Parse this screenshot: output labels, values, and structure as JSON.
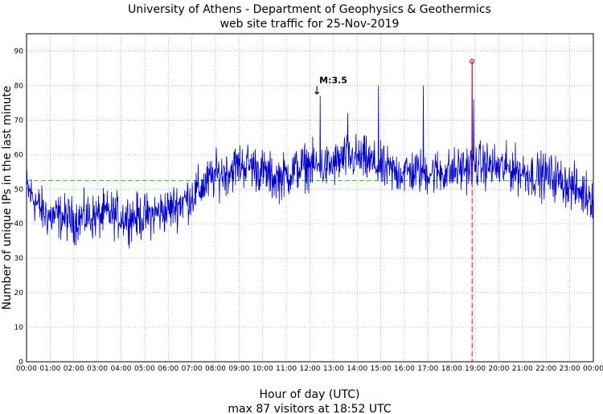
{
  "chart_data": {
    "type": "line",
    "title": "University of Athens - Department of Geophysics & Geothermics",
    "subtitle": "web site traffic for 25-Nov-2019",
    "xlabel": "Hour of day (UTC)",
    "ylabel": "Number of unique IPs in the last minute",
    "footer": "max 87 visitors at 18:52 UTC",
    "xlim": [
      0,
      24
    ],
    "ylim": [
      0,
      95
    ],
    "x_ticks": [
      "00:00",
      "01:00",
      "02:00",
      "03:00",
      "04:00",
      "05:00",
      "06:00",
      "07:00",
      "08:00",
      "09:00",
      "10:00",
      "11:00",
      "12:00",
      "13:00",
      "14:00",
      "15:00",
      "16:00",
      "17:00",
      "18:00",
      "19:00",
      "20:00",
      "21:00",
      "22:00",
      "23:00",
      "00:00"
    ],
    "y_ticks": [
      0,
      10,
      20,
      30,
      40,
      50,
      60,
      70,
      80,
      90
    ],
    "grid": true,
    "mean_line": 52.5,
    "max_marker": {
      "hour": 18.867,
      "value": 87
    },
    "annotation": {
      "label": "M:3.5",
      "hour": 12.43,
      "value": 77
    },
    "colors": {
      "series": "#0000cc",
      "mean": "#33cc33",
      "max": "#ff0000"
    },
    "series": [
      {
        "values": [
          [
            0.0,
            50
          ],
          [
            0.25,
            48
          ],
          [
            0.5,
            45
          ],
          [
            0.75,
            43
          ],
          [
            1.0,
            42
          ],
          [
            1.5,
            42
          ],
          [
            2.0,
            41
          ],
          [
            2.5,
            42
          ],
          [
            3.0,
            42
          ],
          [
            3.5,
            43
          ],
          [
            4.0,
            42
          ],
          [
            4.5,
            42
          ],
          [
            5.0,
            42
          ],
          [
            5.5,
            43
          ],
          [
            6.0,
            44
          ],
          [
            6.5,
            46
          ],
          [
            7.0,
            48
          ],
          [
            7.5,
            51
          ],
          [
            8.0,
            54
          ],
          [
            8.5,
            55
          ],
          [
            9.0,
            57
          ],
          [
            9.5,
            57
          ],
          [
            10.0,
            55
          ],
          [
            10.5,
            53
          ],
          [
            11.0,
            54
          ],
          [
            11.5,
            56
          ],
          [
            12.0,
            57
          ],
          [
            12.5,
            56
          ],
          [
            13.0,
            57
          ],
          [
            13.5,
            59
          ],
          [
            14.0,
            59
          ],
          [
            14.5,
            58
          ],
          [
            15.0,
            56
          ],
          [
            15.5,
            55
          ],
          [
            16.0,
            55
          ],
          [
            16.5,
            55
          ],
          [
            17.0,
            55
          ],
          [
            17.5,
            55
          ],
          [
            18.0,
            55
          ],
          [
            18.5,
            56
          ],
          [
            19.0,
            57
          ],
          [
            19.5,
            57
          ],
          [
            20.0,
            56
          ],
          [
            20.5,
            56
          ],
          [
            21.0,
            55
          ],
          [
            21.5,
            54
          ],
          [
            22.0,
            54
          ],
          [
            22.5,
            53
          ],
          [
            23.0,
            51
          ],
          [
            23.5,
            49
          ],
          [
            24.0,
            48
          ]
        ]
      }
    ]
  }
}
